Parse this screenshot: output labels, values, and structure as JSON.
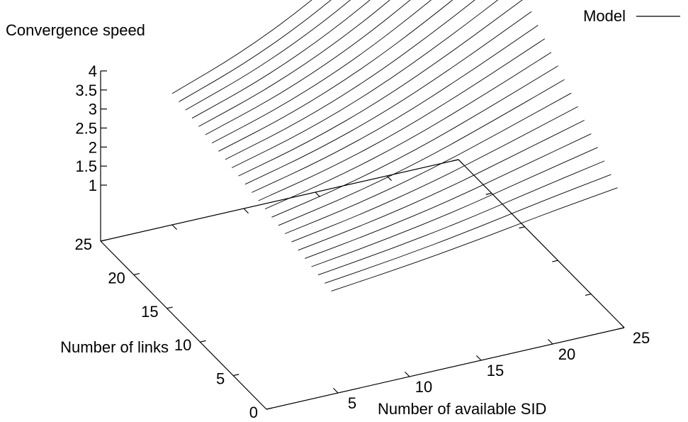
{
  "chart_data": {
    "type": "surface3d",
    "title": "",
    "zlabel": "Convergence speed",
    "xlabel": "Number of available SID",
    "ylabel": "Number of links",
    "legend": {
      "entries": [
        {
          "name": "Model",
          "style": "line",
          "color": "#000000"
        }
      ],
      "position": "top-right"
    },
    "x_ticks": [
      "5",
      "10",
      "15",
      "20",
      "25"
    ],
    "y_ticks": [
      "0",
      "5",
      "10",
      "15",
      "20",
      "25"
    ],
    "z_ticks": [
      "1",
      "1.5",
      "2",
      "2.5",
      "3",
      "3.5",
      "4"
    ],
    "xlim": [
      0,
      25
    ],
    "ylim": [
      0,
      25
    ],
    "zlim": [
      1,
      4
    ],
    "series": [
      {
        "links": 1,
        "points": [
          [
            5,
            0.45
          ],
          [
            10,
            0.65
          ],
          [
            15,
            0.9
          ],
          [
            20,
            1.2
          ],
          [
            25,
            1.45
          ]
        ]
      },
      {
        "links": 2,
        "points": [
          [
            5,
            0.48
          ],
          [
            10,
            0.7
          ],
          [
            15,
            0.98
          ],
          [
            20,
            1.32
          ],
          [
            25,
            1.62
          ]
        ]
      },
      {
        "links": 3,
        "points": [
          [
            5,
            0.52
          ],
          [
            10,
            0.76
          ],
          [
            15,
            1.06
          ],
          [
            20,
            1.44
          ],
          [
            25,
            1.8
          ]
        ]
      },
      {
        "links": 4,
        "points": [
          [
            5,
            0.56
          ],
          [
            10,
            0.82
          ],
          [
            15,
            1.15
          ],
          [
            20,
            1.57
          ],
          [
            25,
            1.98
          ]
        ]
      },
      {
        "links": 5,
        "points": [
          [
            5,
            0.6
          ],
          [
            10,
            0.88
          ],
          [
            15,
            1.24
          ],
          [
            20,
            1.7
          ],
          [
            25,
            2.16
          ]
        ]
      },
      {
        "links": 6,
        "points": [
          [
            5,
            0.64
          ],
          [
            10,
            0.94
          ],
          [
            15,
            1.33
          ],
          [
            20,
            1.83
          ],
          [
            25,
            2.34
          ]
        ]
      },
      {
        "links": 7,
        "points": [
          [
            5,
            0.68
          ],
          [
            10,
            1.0
          ],
          [
            15,
            1.42
          ],
          [
            20,
            1.96
          ],
          [
            25,
            2.52
          ]
        ]
      },
      {
        "links": 8,
        "points": [
          [
            5,
            0.72
          ],
          [
            10,
            1.06
          ],
          [
            15,
            1.51
          ],
          [
            20,
            2.09
          ],
          [
            25,
            2.7
          ]
        ]
      },
      {
        "links": 9,
        "points": [
          [
            5,
            0.76
          ],
          [
            10,
            1.12
          ],
          [
            15,
            1.6
          ],
          [
            20,
            2.22
          ],
          [
            25,
            2.88
          ]
        ]
      },
      {
        "links": 10,
        "points": [
          [
            5,
            0.8
          ],
          [
            10,
            1.18
          ],
          [
            15,
            1.69
          ],
          [
            20,
            2.35
          ],
          [
            25,
            3.06
          ]
        ]
      },
      {
        "links": 11,
        "points": [
          [
            5,
            0.84
          ],
          [
            10,
            1.24
          ],
          [
            15,
            1.78
          ],
          [
            20,
            2.48
          ],
          [
            25,
            3.24
          ]
        ]
      },
      {
        "links": 12,
        "points": [
          [
            5,
            0.88
          ],
          [
            10,
            1.3
          ],
          [
            15,
            1.87
          ],
          [
            20,
            2.61
          ],
          [
            25,
            3.42
          ]
        ]
      },
      {
        "links": 13,
        "points": [
          [
            5,
            0.92
          ],
          [
            10,
            1.36
          ],
          [
            15,
            1.96
          ],
          [
            20,
            2.74
          ],
          [
            25,
            3.6
          ]
        ]
      },
      {
        "links": 14,
        "points": [
          [
            5,
            0.96
          ],
          [
            10,
            1.42
          ],
          [
            15,
            2.05
          ],
          [
            20,
            2.87
          ],
          [
            25,
            3.78
          ]
        ]
      },
      {
        "links": 15,
        "points": [
          [
            5,
            1.0
          ],
          [
            10,
            1.48
          ],
          [
            15,
            2.14
          ],
          [
            20,
            3.0
          ],
          [
            25,
            3.96
          ]
        ]
      },
      {
        "links": 16,
        "points": [
          [
            5,
            1.04
          ],
          [
            10,
            1.54
          ],
          [
            15,
            2.23
          ],
          [
            20,
            3.13
          ],
          [
            25,
            4.14
          ]
        ]
      },
      {
        "links": 17,
        "points": [
          [
            5,
            1.08
          ],
          [
            10,
            1.6
          ],
          [
            15,
            2.32
          ],
          [
            20,
            3.26
          ],
          [
            25,
            4.32
          ]
        ]
      },
      {
        "links": 18,
        "points": [
          [
            5,
            1.12
          ],
          [
            10,
            1.66
          ],
          [
            15,
            2.41
          ],
          [
            20,
            3.39
          ],
          [
            25,
            4.5
          ]
        ]
      },
      {
        "links": 19,
        "points": [
          [
            5,
            1.16
          ],
          [
            10,
            1.72
          ],
          [
            15,
            2.5
          ],
          [
            20,
            3.52
          ],
          [
            25,
            4.68
          ]
        ]
      },
      {
        "links": 20,
        "points": [
          [
            5,
            1.2
          ],
          [
            10,
            1.78
          ],
          [
            15,
            2.59
          ],
          [
            20,
            3.65
          ],
          [
            25,
            4.86
          ]
        ]
      },
      {
        "links": 21,
        "points": [
          [
            5,
            1.24
          ],
          [
            10,
            1.84
          ],
          [
            15,
            2.68
          ],
          [
            20,
            3.78
          ],
          [
            25,
            5.04
          ]
        ]
      },
      {
        "links": 22,
        "points": [
          [
            5,
            1.28
          ],
          [
            10,
            1.9
          ],
          [
            15,
            2.77
          ],
          [
            20,
            3.91
          ],
          [
            25,
            5.22
          ]
        ]
      },
      {
        "links": 23,
        "points": [
          [
            5,
            1.32
          ],
          [
            10,
            1.96
          ],
          [
            15,
            2.86
          ],
          [
            20,
            4.04
          ],
          [
            25,
            5.4
          ]
        ]
      },
      {
        "links": 24,
        "points": [
          [
            5,
            1.36
          ],
          [
            10,
            2.02
          ],
          [
            15,
            2.95
          ],
          [
            20,
            4.17
          ],
          [
            25,
            5.58
          ]
        ]
      },
      {
        "links": 25,
        "points": [
          [
            5,
            1.4
          ],
          [
            10,
            2.08
          ],
          [
            15,
            3.04
          ],
          [
            20,
            4.3
          ],
          [
            25,
            5.76
          ]
        ]
      }
    ]
  }
}
